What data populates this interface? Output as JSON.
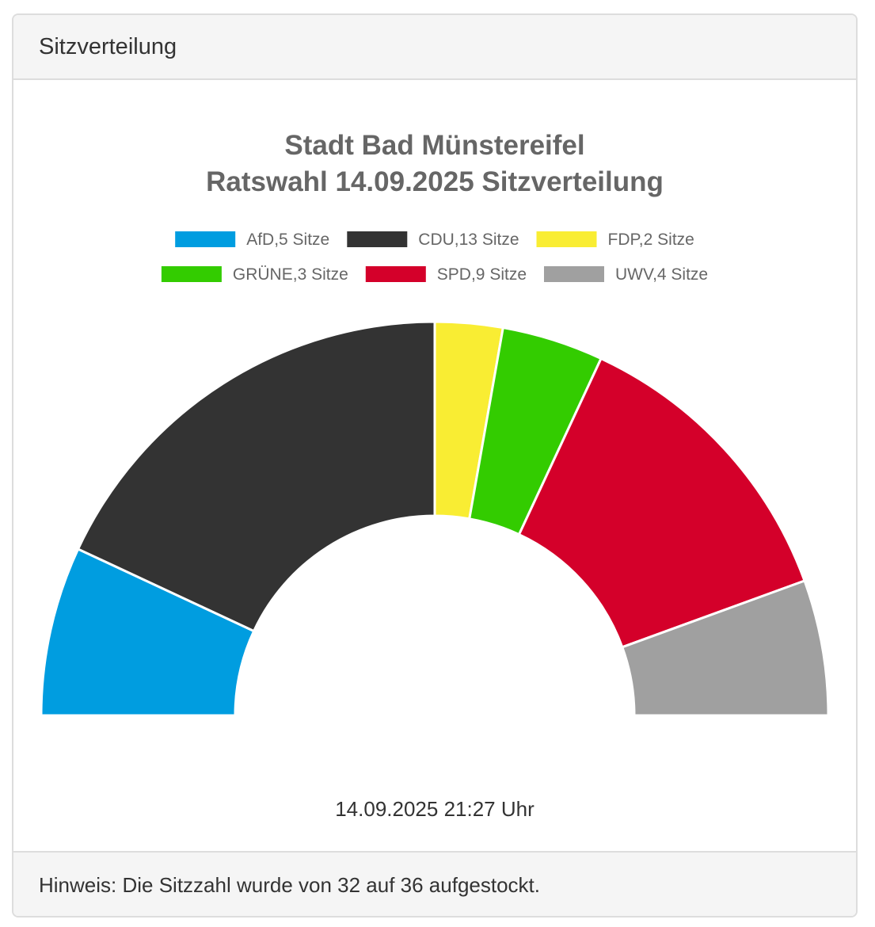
{
  "panel": {
    "heading": "Sitzverteilung",
    "timestamp": "14.09.2025 21:27 Uhr",
    "footer": "Hinweis: Die Sitzzahl wurde von 32 auf 36 aufgestockt."
  },
  "chart_data": {
    "type": "pie",
    "variant": "half-donut",
    "title_lines": [
      "Stadt Bad Münstereifel",
      "Ratswahl 14.09.2025 Sitzverteilung"
    ],
    "legend_placement": "top",
    "categories": [
      "AfD",
      "CDU",
      "FDP",
      "GRÜNE",
      "SPD",
      "UWV"
    ],
    "values": [
      5,
      13,
      2,
      3,
      9,
      4
    ],
    "legend_labels": [
      "AfD,5 Sitze",
      "CDU,13 Sitze",
      "FDP,2 Sitze",
      "GRÜNE,3 Sitze",
      "SPD,9 Sitze",
      "UWV,4 Sitze"
    ],
    "colors": [
      "#009de0",
      "#333333",
      "#f9ed33",
      "#33cc00",
      "#d4002a",
      "#a0a0a0"
    ]
  }
}
